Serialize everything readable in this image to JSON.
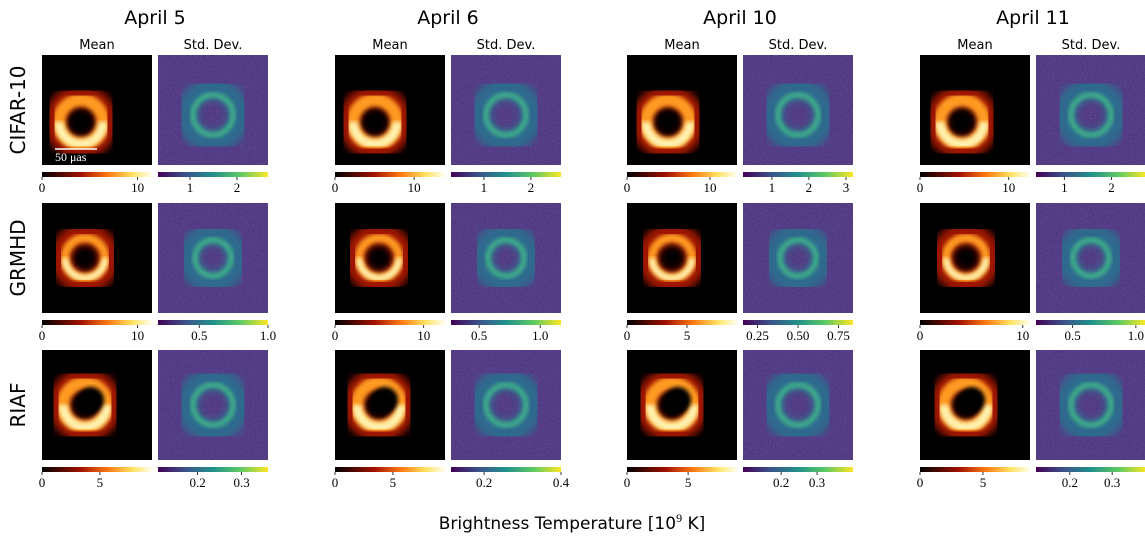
{
  "dates": [
    "April 5",
    "April 6",
    "April 10",
    "April 11"
  ],
  "panel_titles": [
    "Mean",
    "Std. Dev."
  ],
  "scale_bar": "50 μas",
  "xlabel": {
    "text": "Brightness Temperature [10",
    "sup": "9",
    "end": " K]"
  },
  "rows": [
    {
      "label": "CIFAR-10",
      "colorbars": [
        {
          "lim": [
            0,
            11.5
          ],
          "ticks": [
            0,
            10
          ]
        },
        {
          "lim": [
            0.32,
            2.66
          ],
          "ticks": [
            1,
            2
          ]
        },
        {
          "lim": [
            0,
            13.9
          ],
          "ticks": [
            0,
            10
          ]
        },
        {
          "lim": [
            0.3,
            2.64
          ],
          "ticks": [
            1,
            2
          ]
        },
        {
          "lim": [
            0,
            13.25
          ],
          "ticks": [
            0,
            10
          ]
        },
        {
          "lim": [
            0.22,
            3.19
          ],
          "ticks": [
            1,
            2,
            3
          ]
        },
        {
          "lim": [
            0,
            12.4
          ],
          "ticks": [
            0,
            10
          ]
        },
        {
          "lim": [
            0.4,
            2.73
          ],
          "ticks": [
            1,
            2
          ]
        }
      ]
    },
    {
      "label": "GRMHD",
      "colorbars": [
        {
          "lim": [
            0,
            11.5
          ],
          "ticks": [
            0,
            10
          ]
        },
        {
          "lim": [
            0.2,
            1.0
          ],
          "ticks": [
            0.5,
            {
              "value": 1,
              "label": "1.0"
            }
          ]
        },
        {
          "lim": [
            0,
            12.4
          ],
          "ticks": [
            0,
            10
          ]
        },
        {
          "lim": [
            0.27,
            1.17
          ],
          "ticks": [
            0.5,
            {
              "value": 1,
              "label": "1.0"
            }
          ]
        },
        {
          "lim": [
            0,
            9.17
          ],
          "ticks": [
            0,
            5
          ]
        },
        {
          "lim": [
            0.16,
            0.84
          ],
          "ticks": [
            0.25,
            {
              "value": 0.5,
              "label": "0.50"
            },
            0.75
          ]
        },
        {
          "lim": [
            0,
            10.7
          ],
          "ticks": [
            0,
            10
          ]
        },
        {
          "lim": [
            0.21,
            1.08
          ],
          "ticks": [
            0.5,
            {
              "value": 1,
              "label": "1.0"
            }
          ]
        }
      ]
    },
    {
      "label": "RIAF",
      "colorbars": [
        {
          "lim": [
            0,
            9.5
          ],
          "ticks": [
            0,
            5
          ]
        },
        {
          "lim": [
            0.11,
            0.36
          ],
          "ticks": [
            0.2,
            0.3
          ]
        },
        {
          "lim": [
            0,
            9.5
          ],
          "ticks": [
            0,
            5
          ]
        },
        {
          "lim": [
            0.114,
            0.4
          ],
          "ticks": [
            0.2,
            0.4
          ]
        },
        {
          "lim": [
            0,
            9.0
          ],
          "ticks": [
            0,
            5
          ]
        },
        {
          "lim": [
            0.094,
            0.4
          ],
          "ticks": [
            0.2,
            0.3
          ]
        },
        {
          "lim": [
            0,
            8.73
          ],
          "ticks": [
            0,
            5
          ]
        },
        {
          "lim": [
            0.12,
            0.38
          ],
          "ticks": [
            0.2,
            0.3
          ]
        }
      ]
    }
  ]
}
